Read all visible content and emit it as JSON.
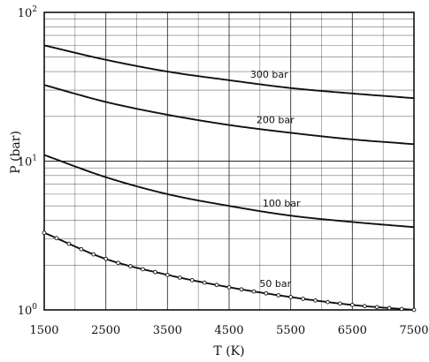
{
  "chart_data": {
    "type": "line",
    "title": "",
    "xlabel": "T (K)",
    "ylabel": "P (bar)",
    "xlim": [
      1500,
      7500
    ],
    "ylim": [
      1,
      100
    ],
    "y_scale": "log",
    "grid": true,
    "x_ticks": [
      "1500",
      "2500",
      "3500",
      "4500",
      "5500",
      "6500",
      "7500"
    ],
    "y_ticks": [
      {
        "base": "10",
        "exp": "0"
      },
      {
        "base": "10",
        "exp": "1"
      },
      {
        "base": "10",
        "exp": "2"
      }
    ],
    "series": [
      {
        "name": "300 bar",
        "x": [
          1500,
          2500,
          3500,
          4500,
          5500,
          6500,
          7500
        ],
        "y": [
          60,
          48,
          40,
          35,
          31,
          28.5,
          26.5
        ]
      },
      {
        "name": "200 bar",
        "x": [
          1500,
          2500,
          3500,
          4500,
          5500,
          6500,
          7500
        ],
        "y": [
          32.5,
          25,
          20.5,
          17.5,
          15.5,
          14,
          13
        ]
      },
      {
        "name": "100 bar",
        "x": [
          1500,
          2500,
          3500,
          4500,
          5500,
          6500,
          7500
        ],
        "y": [
          11,
          7.8,
          6,
          5,
          4.3,
          3.9,
          3.6
        ]
      },
      {
        "name": "50 bar",
        "x": [
          1500,
          2500,
          3500,
          4500,
          5500,
          6500,
          7500
        ],
        "y": [
          3.3,
          2.2,
          1.72,
          1.42,
          1.22,
          1.08,
          1.0
        ]
      }
    ],
    "line_color": "#111111"
  }
}
